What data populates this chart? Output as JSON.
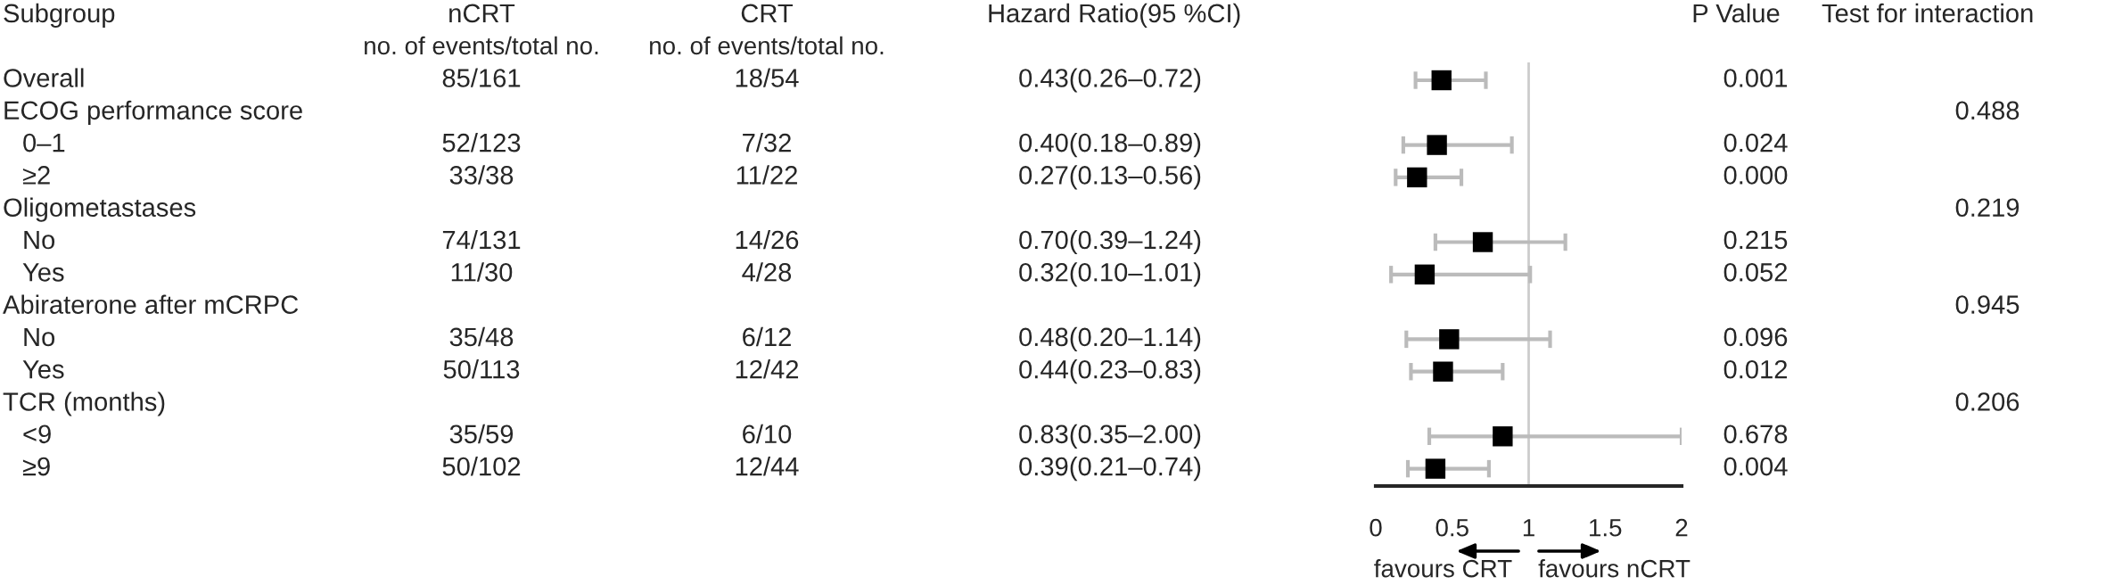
{
  "chart_data": [
    {
      "type": "other",
      "categories": [
        "Subgroup",
        "nCRT",
        "CRT",
        "Hazard Ratio(95 %CI)",
        "P Value",
        "Test for interaction"
      ],
      "cell_labels": [
        [
          null,
          "no. of events/total no.",
          "no. of events/total no.",
          null,
          null,
          null
        ],
        [
          "Overall",
          "85/161",
          "18/54",
          "0.43(0.26–0.72)",
          "0.001",
          null
        ],
        [
          "ECOG performance score",
          null,
          null,
          null,
          null,
          "0.488"
        ],
        [
          "0–1",
          "52/123",
          "7/32",
          "0.40(0.18–0.89)",
          "0.024",
          null
        ],
        [
          "≥2",
          "33/38",
          "11/22",
          "0.27(0.13–0.56)",
          "0.000",
          null
        ],
        [
          "Oligometastases",
          null,
          null,
          null,
          null,
          "0.219"
        ],
        [
          "No",
          "74/131",
          "14/26",
          "0.70(0.39–1.24)",
          "0.215",
          null
        ],
        [
          "Yes",
          "11/30",
          "4/28",
          "0.32(0.10–1.01)",
          "0.052",
          null
        ],
        [
          "Abiraterone after mCRPC",
          null,
          null,
          null,
          null,
          "0.945"
        ],
        [
          "No",
          "35/48",
          "6/12",
          "0.48(0.20–1.14)",
          "0.096",
          null
        ],
        [
          "Yes",
          "50/113",
          "12/42",
          "0.44(0.23–0.83)",
          "0.012",
          null
        ],
        [
          "TCR (months)",
          null,
          null,
          null,
          null,
          "0.206"
        ],
        [
          "<9",
          "35/59",
          "6/10",
          "0.83(0.35–2.00)",
          "0.678",
          null
        ],
        [
          "≥9",
          "50/102",
          "12/44",
          "0.39(0.21–0.74)",
          "0.004",
          null
        ]
      ]
    },
    {
      "type": "scatter",
      "orientation": "horizontal",
      "marker": "square",
      "color": "#000000",
      "categories": [
        null,
        null,
        null,
        null,
        null,
        null,
        null,
        null,
        null,
        null,
        null,
        null,
        null
      ],
      "values": [
        0.43,
        null,
        0.4,
        0.27,
        null,
        0.7,
        0.32,
        null,
        0.48,
        0.44,
        null,
        0.83,
        0.39
      ],
      "errors": [
        [
          0.26,
          0.72
        ],
        null,
        [
          0.18,
          0.89
        ],
        [
          0.13,
          0.56
        ],
        null,
        [
          0.39,
          1.24
        ],
        [
          0.1,
          1.01
        ],
        null,
        [
          0.2,
          1.14
        ],
        [
          0.23,
          0.83
        ],
        null,
        [
          0.35,
          2.0
        ],
        [
          0.21,
          0.74
        ]
      ],
      "xlim": [
        0,
        2
      ],
      "xticks": [
        0,
        0.5,
        1,
        1.5,
        2
      ],
      "ref_lines": [
        {
          "axis": "x",
          "value": 1,
          "color": "#cccccc"
        }
      ],
      "annotations": [
        "favours CRT",
        "favours nCRT"
      ],
      "tick_labels": "x",
      "grid": false
    }
  ]
}
